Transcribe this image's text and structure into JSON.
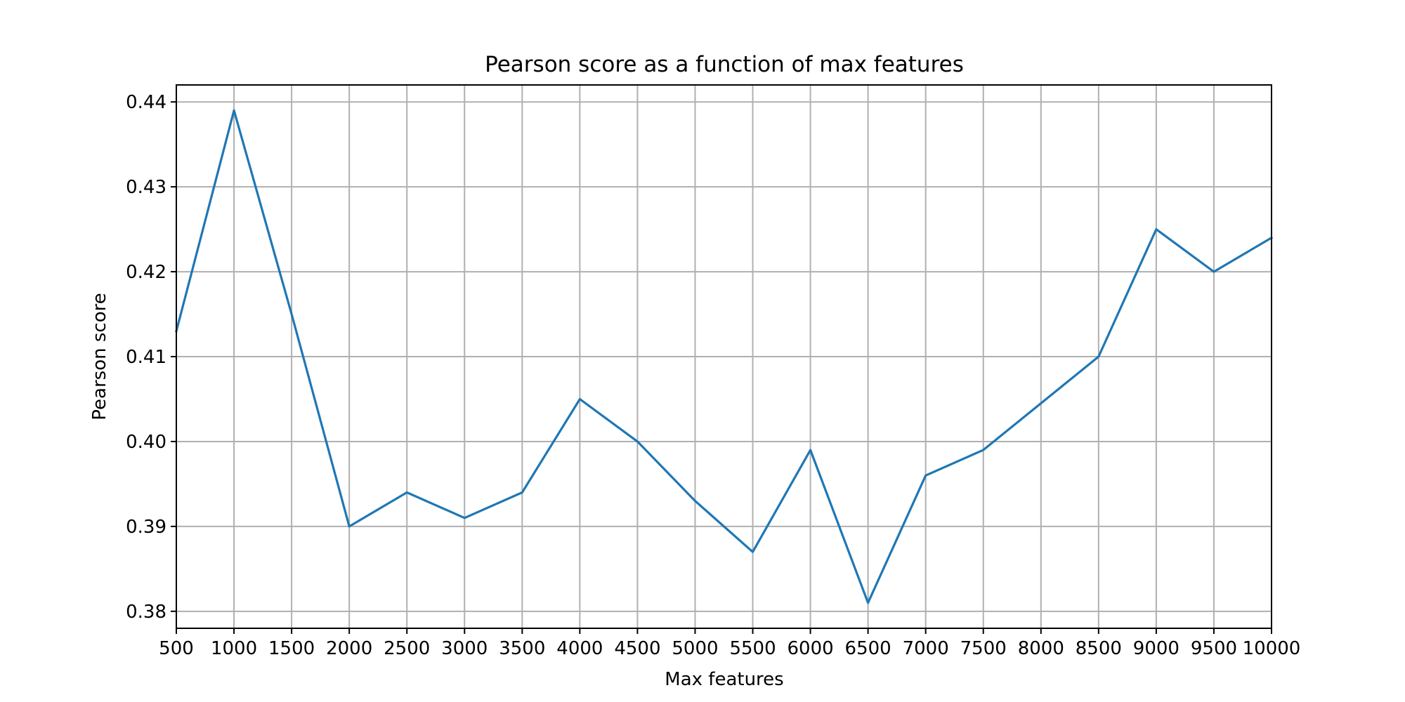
{
  "chart_data": {
    "type": "line",
    "title": "Pearson score as a function of max features",
    "xlabel": "Max features",
    "ylabel": "Pearson score",
    "xlim": [
      500,
      10000
    ],
    "ylim": [
      0.378,
      0.442
    ],
    "x_ticks": [
      500,
      1000,
      1500,
      2000,
      2500,
      3000,
      3500,
      4000,
      4500,
      5000,
      5500,
      6000,
      6500,
      7000,
      7500,
      8000,
      8500,
      9000,
      9500,
      10000
    ],
    "y_ticks": [
      0.38,
      0.39,
      0.4,
      0.41,
      0.42,
      0.43,
      0.44
    ],
    "y_tick_labels": [
      "0.38",
      "0.39",
      "0.40",
      "0.41",
      "0.42",
      "0.43",
      "0.44"
    ],
    "grid": true,
    "series": [
      {
        "color": "#1f77b4",
        "x": [
          500,
          1000,
          1500,
          2000,
          2500,
          3000,
          3500,
          4000,
          4500,
          5000,
          5500,
          6000,
          6500,
          7000,
          7500,
          8000,
          8500,
          9000,
          9500,
          10000
        ],
        "values": [
          0.413,
          0.439,
          0.415,
          0.39,
          0.394,
          0.391,
          0.394,
          0.405,
          0.4,
          0.393,
          0.387,
          0.399,
          0.381,
          0.396,
          0.399,
          0.4045,
          0.41,
          0.425,
          0.42,
          0.424
        ]
      }
    ]
  }
}
